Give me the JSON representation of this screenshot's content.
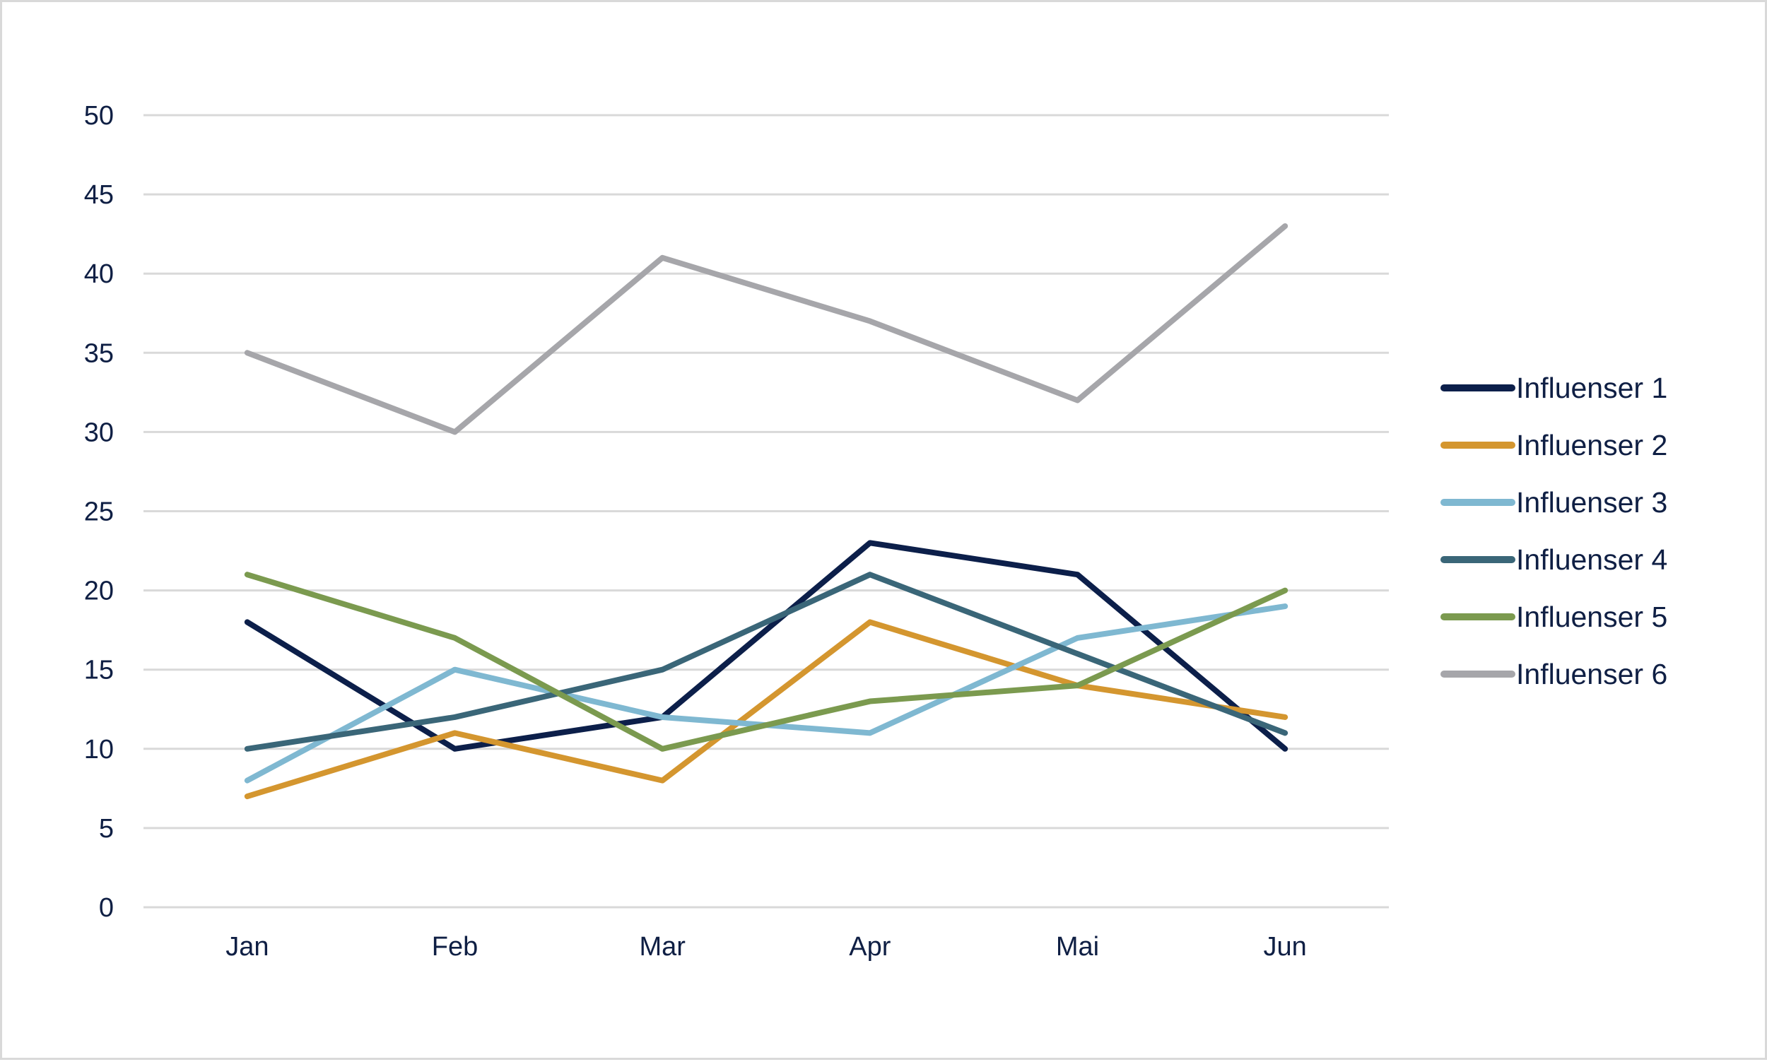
{
  "chart_data": {
    "type": "line",
    "title": "",
    "xlabel": "",
    "ylabel": "",
    "categories": [
      "Jan",
      "Feb",
      "Mar",
      "Apr",
      "Mai",
      "Jun"
    ],
    "ylim": [
      0,
      50
    ],
    "yticks": [
      0,
      5,
      10,
      15,
      20,
      25,
      30,
      35,
      40,
      45,
      50
    ],
    "grid": "horizontal",
    "legend_position": "right",
    "series": [
      {
        "name": "Influenser 1",
        "color": "#0c1f4a",
        "values": [
          18,
          10,
          12,
          23,
          21,
          10
        ]
      },
      {
        "name": "Influenser 2",
        "color": "#d4962f",
        "values": [
          7,
          11,
          8,
          18,
          14,
          12
        ]
      },
      {
        "name": "Influenser 3",
        "color": "#7fb8d1",
        "values": [
          8,
          15,
          12,
          11,
          17,
          19
        ]
      },
      {
        "name": "Influenser 4",
        "color": "#3a6678",
        "values": [
          10,
          12,
          15,
          21,
          16,
          11
        ]
      },
      {
        "name": "Influenser 5",
        "color": "#7b9a4f",
        "values": [
          21,
          17,
          10,
          13,
          14,
          20
        ]
      },
      {
        "name": "Influenser 6",
        "color": "#a6a6aa",
        "values": [
          35,
          30,
          41,
          37,
          32,
          43
        ]
      }
    ]
  }
}
